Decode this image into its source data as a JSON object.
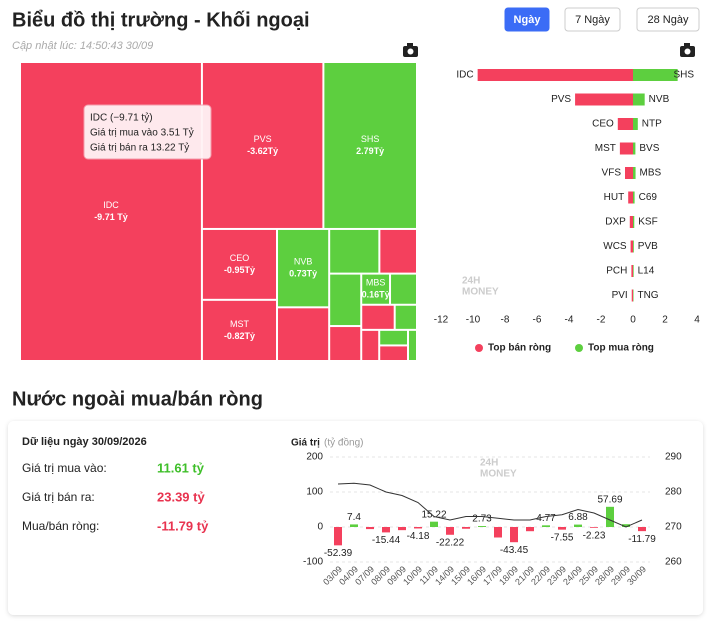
{
  "header": {
    "title": "Biểu đồ thị trường - Khối ngoại",
    "buttons": [
      "Ngày",
      "7 Ngày",
      "28 Ngày"
    ],
    "updated": "Cập nhật lúc: 14:50:43 30/09"
  },
  "chart_data": [
    {
      "type": "treemap",
      "negative_color": "#f4405d",
      "positive_color": "#5dcf3f",
      "items": [
        {
          "name": "IDC",
          "value": -9.71,
          "label": "-9.71 Tỷ"
        },
        {
          "name": "PVS",
          "value": -3.62,
          "label": "-3.62Tỷ"
        },
        {
          "name": "SHS",
          "value": 2.79,
          "label": "2.79Tỷ"
        },
        {
          "name": "CEO",
          "value": -0.95,
          "label": "-0.95Tỷ"
        },
        {
          "name": "MST",
          "value": -0.82,
          "label": "-0.82Tỷ"
        },
        {
          "name": "NVB",
          "value": 0.73,
          "label": "0.73Tỷ"
        },
        {
          "name": null,
          "value": -0.5
        },
        {
          "name": null,
          "value": 0.4
        },
        {
          "name": null,
          "value": -0.3
        },
        {
          "name": null,
          "value": 0.3
        },
        {
          "name": null,
          "value": -0.2
        },
        {
          "name": "MBS",
          "value": 0.16,
          "label": "0.16Tỷ"
        },
        {
          "name": null,
          "value": 0.15
        },
        {
          "name": null,
          "value": -0.15
        },
        {
          "name": null,
          "value": 0.1
        },
        {
          "name": null,
          "value": -0.1
        },
        {
          "name": null,
          "value": 0.08
        },
        {
          "name": null,
          "value": -0.08
        },
        {
          "name": null,
          "value": 0.05
        }
      ],
      "tooltip": {
        "title": "IDC (−9.71 tỷ)",
        "rows": [
          "Giá trị mua vào 3.51 Tỷ",
          "Giá trị bán ra 13.22 Tỷ"
        ]
      }
    },
    {
      "type": "bar",
      "orientation": "horizontal",
      "xlim": [
        -12,
        4
      ],
      "xticks": [
        -12,
        -10,
        -8,
        -6,
        -4,
        -2,
        0,
        2,
        4
      ],
      "watermark": [
        "24H",
        "MONEY"
      ],
      "series": [
        {
          "name": "Top bán ròng",
          "color": "#f4405d",
          "categories": [
            "IDC",
            "PVS",
            "CEO",
            "MST",
            "VFS",
            "HUT",
            "DXP",
            "WCS",
            "PCH",
            "PVI"
          ],
          "values": [
            -9.71,
            -3.62,
            -0.95,
            -0.82,
            -0.5,
            -0.3,
            -0.2,
            -0.15,
            -0.1,
            -0.08
          ]
        },
        {
          "name": "Top mua ròng",
          "color": "#5dcf3f",
          "categories": [
            "SHS",
            "NVB",
            "NTP",
            "BVS",
            "MBS",
            "C69",
            "KSF",
            "PVB",
            "L14",
            "TNG"
          ],
          "values": [
            2.79,
            0.73,
            0.3,
            0.15,
            0.16,
            0.1,
            0.08,
            0.05,
            0.04,
            0.03
          ]
        }
      ]
    },
    {
      "type": "combo",
      "y_label": "Giá trị",
      "y_unit": "(tỷ đồng)",
      "watermark": [
        "24H",
        "MONEY"
      ],
      "categories": [
        "03/09",
        "04/09",
        "07/09",
        "08/09",
        "09/09",
        "10/09",
        "11/09",
        "14/09",
        "15/09",
        "16/09",
        "17/09",
        "18/09",
        "21/09",
        "22/09",
        "23/09",
        "24/09",
        "25/09",
        "28/09",
        "29/09",
        "30/09"
      ],
      "ylim": [
        -100,
        200
      ],
      "yticks": [
        -100,
        0,
        100,
        200
      ],
      "y2lim": [
        260,
        290
      ],
      "y2ticks": [
        260,
        270,
        280,
        290
      ],
      "grid": true,
      "series": [
        {
          "type": "bar",
          "positive_color": "#5dcf3f",
          "negative_color": "#f4405d",
          "values": [
            -52.39,
            7.4,
            -6,
            -15.44,
            -9,
            -4.18,
            15.22,
            -22.22,
            -5,
            2.73,
            -30,
            -43.45,
            -12,
            4.77,
            -7.55,
            6.88,
            -2.23,
            57.69,
            8,
            -11.79
          ],
          "value_labels": [
            "-52.39",
            "7.4",
            null,
            "-15.44",
            null,
            "-4.18",
            "15.22",
            "-22.22",
            null,
            "2.73",
            null,
            "-43.45",
            null,
            "4.77",
            "-7.55",
            "6.88",
            "-2.23",
            "57.69",
            null,
            "-11.79"
          ]
        },
        {
          "type": "line",
          "axis": "y2",
          "color": "#333333",
          "values": [
            282.3,
            282.5,
            282,
            280,
            279,
            277,
            273,
            272,
            273,
            273,
            272.5,
            272,
            272,
            273,
            273.5,
            275,
            274,
            272,
            270,
            272
          ]
        }
      ]
    }
  ],
  "net_section": {
    "title": "Nước ngoài mua/bán ròng",
    "date": "Dữ liệu ngày 30/09/2026",
    "rows": [
      {
        "label": "Giá trị mua vào:",
        "value": "11.61 tỷ",
        "color": "#3fbf2a"
      },
      {
        "label": "Giá trị bán ra:",
        "value": "23.39 tỷ",
        "color": "#e8334f"
      },
      {
        "label": "Mua/bán ròng:",
        "value": "-11.79 tỷ",
        "color": "#e8334f"
      }
    ]
  }
}
